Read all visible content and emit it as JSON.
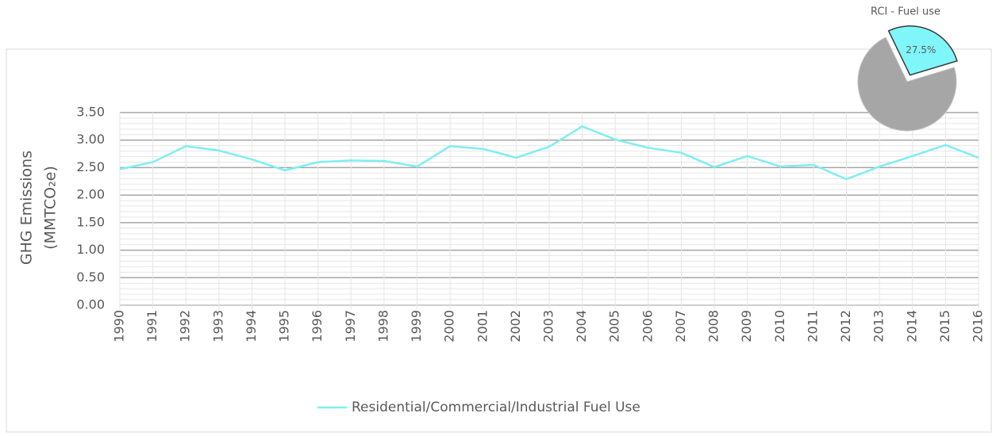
{
  "chart_data": [
    {
      "type": "line",
      "y_label": [
        "GHG Emissions",
        "(MMTCO₂e)"
      ],
      "categories": [
        "1990",
        "1991",
        "1992",
        "1993",
        "1994",
        "1995",
        "1996",
        "1997",
        "1998",
        "1999",
        "2000",
        "2001",
        "2002",
        "2003",
        "2004",
        "2005",
        "2006",
        "2007",
        "2008",
        "2009",
        "2010",
        "2011",
        "2012",
        "2013",
        "2014",
        "2015",
        "2016"
      ],
      "series": [
        {
          "name": "Residential/Commercial/Industrial Fuel Use",
          "color": "#7eeef2",
          "values": [
            2.47,
            2.6,
            2.89,
            2.81,
            2.65,
            2.45,
            2.6,
            2.63,
            2.62,
            2.52,
            2.89,
            2.84,
            2.68,
            2.88,
            3.25,
            3.01,
            2.86,
            2.77,
            2.51,
            2.71,
            2.52,
            2.55,
            2.29,
            2.52,
            2.71,
            2.91,
            2.68
          ]
        }
      ],
      "ylim": [
        0,
        3.5
      ],
      "yticks": [
        {
          "value": 0,
          "label": "0.00"
        },
        {
          "value": 0.5,
          "label": "0.50"
        },
        {
          "value": 1,
          "label": "1.00"
        },
        {
          "value": 1.5,
          "label": "1.50"
        },
        {
          "value": 2,
          "label": "2.00"
        },
        {
          "value": 2.5,
          "label": "2.50"
        },
        {
          "value": 3,
          "label": "3.00"
        },
        {
          "value": 3.5,
          "label": "3.50"
        }
      ],
      "grid": true,
      "minor_grid": true,
      "legend": "bottom"
    },
    {
      "type": "pie",
      "title": "RCI - Fuel use",
      "values": [
        27.5,
        72.5
      ],
      "value_labels": [
        "27.5%",
        null
      ],
      "colors": [
        "#7ff6f9",
        "#a6a6a6"
      ]
    }
  ]
}
